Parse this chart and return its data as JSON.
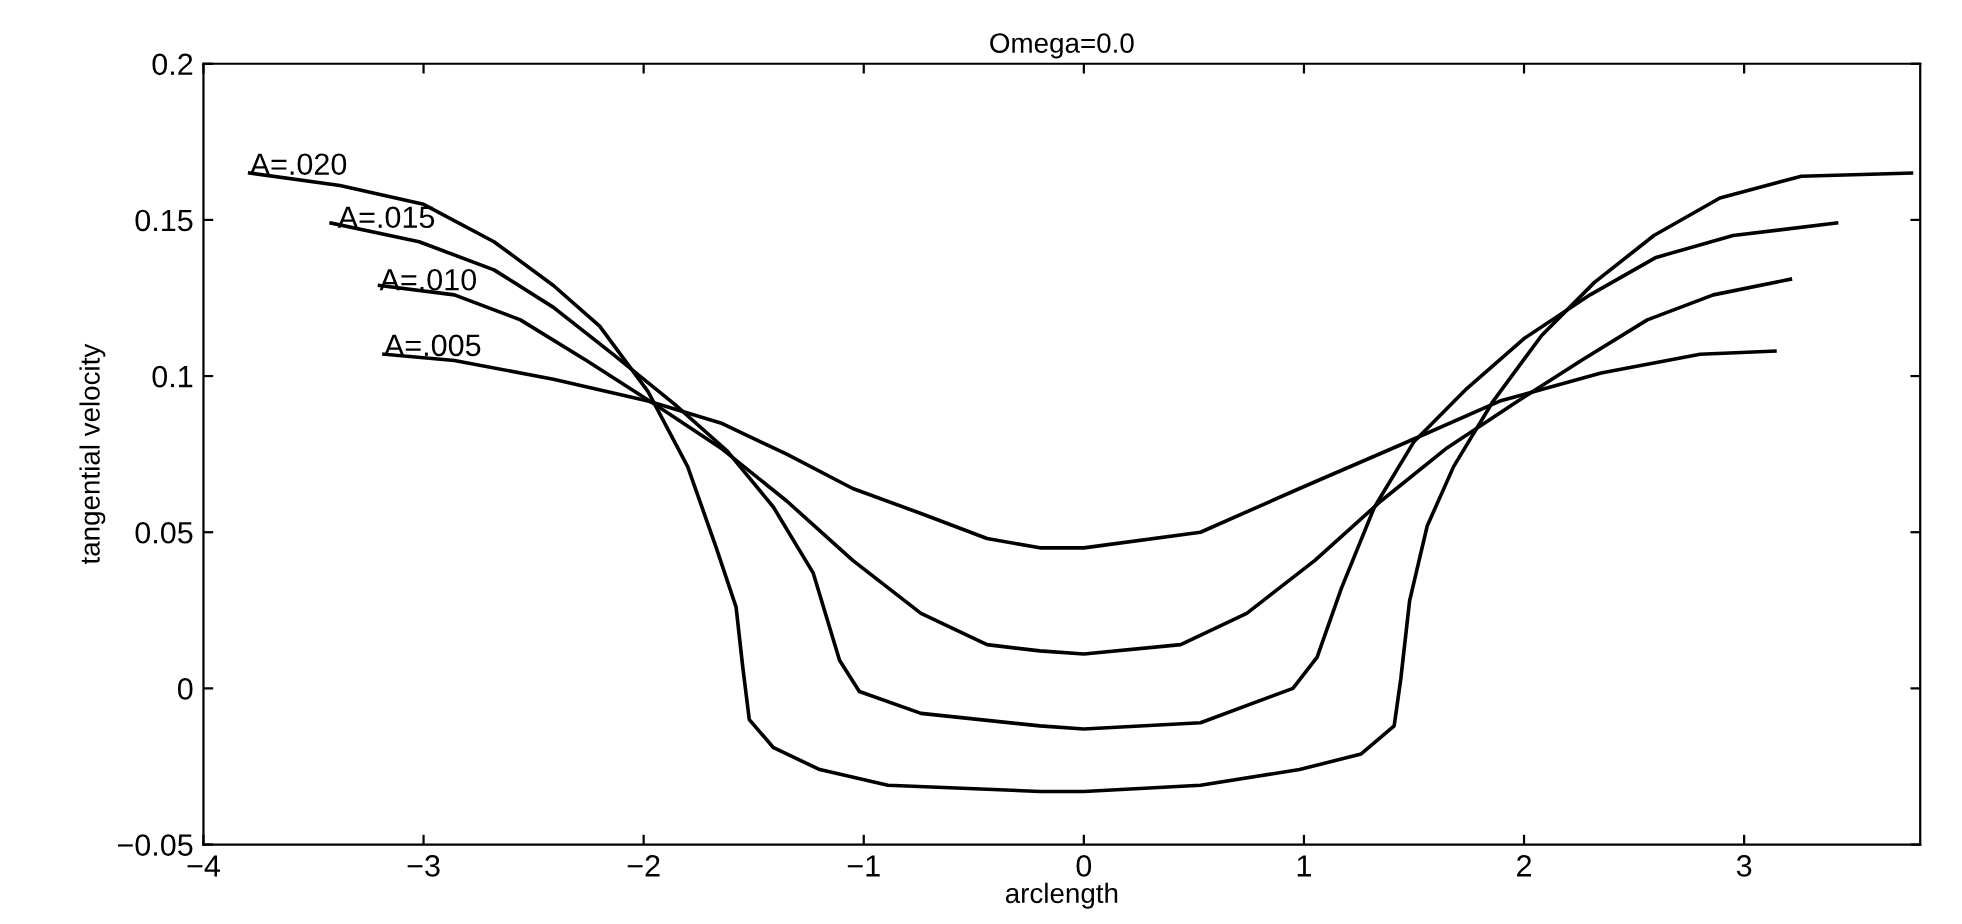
{
  "chart_data": {
    "type": "line",
    "title": "Omega=0.0",
    "xlabel": "arclength",
    "ylabel": "tangential velocity",
    "xlim": [
      -4,
      3.8
    ],
    "xticks": [
      {
        "value": -4,
        "label": "−4"
      },
      {
        "value": -3,
        "label": "−3"
      },
      {
        "value": -2,
        "label": "−2"
      },
      {
        "value": -1,
        "label": "−1"
      },
      0,
      1,
      2,
      3
    ],
    "ylim": [
      -0.05,
      0.2
    ],
    "yticks": [
      {
        "value": -0.05,
        "label": "−0.05"
      },
      0,
      0.05,
      0.1,
      0.15,
      0.2
    ],
    "grid": false,
    "legend": false,
    "marker": "none",
    "line_style": "solid",
    "series": [
      {
        "color": "#000000",
        "x": [
          -3.79,
          -3.38,
          -3.0,
          -2.68,
          -2.41,
          -2.2,
          -1.98,
          -1.8,
          -1.67,
          -1.58,
          -1.55,
          -1.52,
          -1.41,
          -1.2,
          -0.89,
          -0.2,
          0,
          0.53,
          0.98,
          1.26,
          1.41,
          1.44,
          1.48,
          1.56,
          1.68,
          1.86,
          2.08,
          2.32,
          2.59,
          2.89,
          3.26,
          3.76
        ],
        "values": [
          0.165,
          0.161,
          0.155,
          0.143,
          0.129,
          0.116,
          0.095,
          0.071,
          0.045,
          0.026,
          0.007,
          -0.01,
          -0.019,
          -0.026,
          -0.031,
          -0.033,
          -0.033,
          -0.031,
          -0.026,
          -0.021,
          -0.012,
          0.003,
          0.028,
          0.052,
          0.071,
          0.092,
          0.113,
          0.13,
          0.145,
          0.157,
          0.164,
          0.165
        ]
      },
      {
        "color": "#000000",
        "x": [
          -3.42,
          -3.02,
          -2.68,
          -2.41,
          -2.14,
          -1.86,
          -1.62,
          -1.41,
          -1.23,
          -1.11,
          -1.02,
          -0.74,
          -0.2,
          0,
          0.53,
          0.95,
          1.06,
          1.17,
          1.32,
          1.5,
          1.74,
          2.0,
          2.3,
          2.6,
          2.95,
          3.42
        ],
        "values": [
          0.149,
          0.143,
          0.134,
          0.122,
          0.107,
          0.091,
          0.076,
          0.058,
          0.037,
          0.009,
          -0.001,
          -0.008,
          -0.012,
          -0.013,
          -0.011,
          0.0,
          0.01,
          0.032,
          0.058,
          0.079,
          0.096,
          0.112,
          0.126,
          0.138,
          0.145,
          0.149
        ]
      },
      {
        "color": "#000000",
        "x": [
          -3.2,
          -2.86,
          -2.56,
          -2.26,
          -1.95,
          -1.65,
          -1.35,
          -1.05,
          -0.74,
          -0.44,
          -0.2,
          0,
          0.44,
          0.74,
          1.05,
          1.35,
          1.65,
          1.95,
          2.26,
          2.56,
          2.86,
          3.21
        ],
        "values": [
          0.129,
          0.126,
          0.118,
          0.105,
          0.091,
          0.077,
          0.06,
          0.041,
          0.024,
          0.014,
          0.012,
          0.011,
          0.014,
          0.024,
          0.041,
          0.06,
          0.077,
          0.091,
          0.105,
          0.118,
          0.126,
          0.131
        ]
      },
      {
        "color": "#000000",
        "x": [
          -3.18,
          -2.86,
          -2.41,
          -1.98,
          -1.65,
          -1.35,
          -1.05,
          -0.74,
          -0.44,
          -0.2,
          0,
          0.53,
          0.98,
          1.44,
          1.89,
          2.35,
          2.8,
          3.14
        ],
        "values": [
          0.107,
          0.105,
          0.099,
          0.092,
          0.085,
          0.075,
          0.064,
          0.056,
          0.048,
          0.045,
          0.045,
          0.05,
          0.064,
          0.078,
          0.092,
          0.101,
          0.107,
          0.108
        ]
      }
    ],
    "annotations": [
      {
        "text": "A=.020",
        "x": -3.79,
        "y": 0.167
      },
      {
        "text": "A=.015",
        "x": -3.39,
        "y": 0.15
      },
      {
        "text": "A=.010",
        "x": -3.2,
        "y": 0.13
      },
      {
        "text": "A=.005",
        "x": -3.18,
        "y": 0.109
      }
    ]
  }
}
